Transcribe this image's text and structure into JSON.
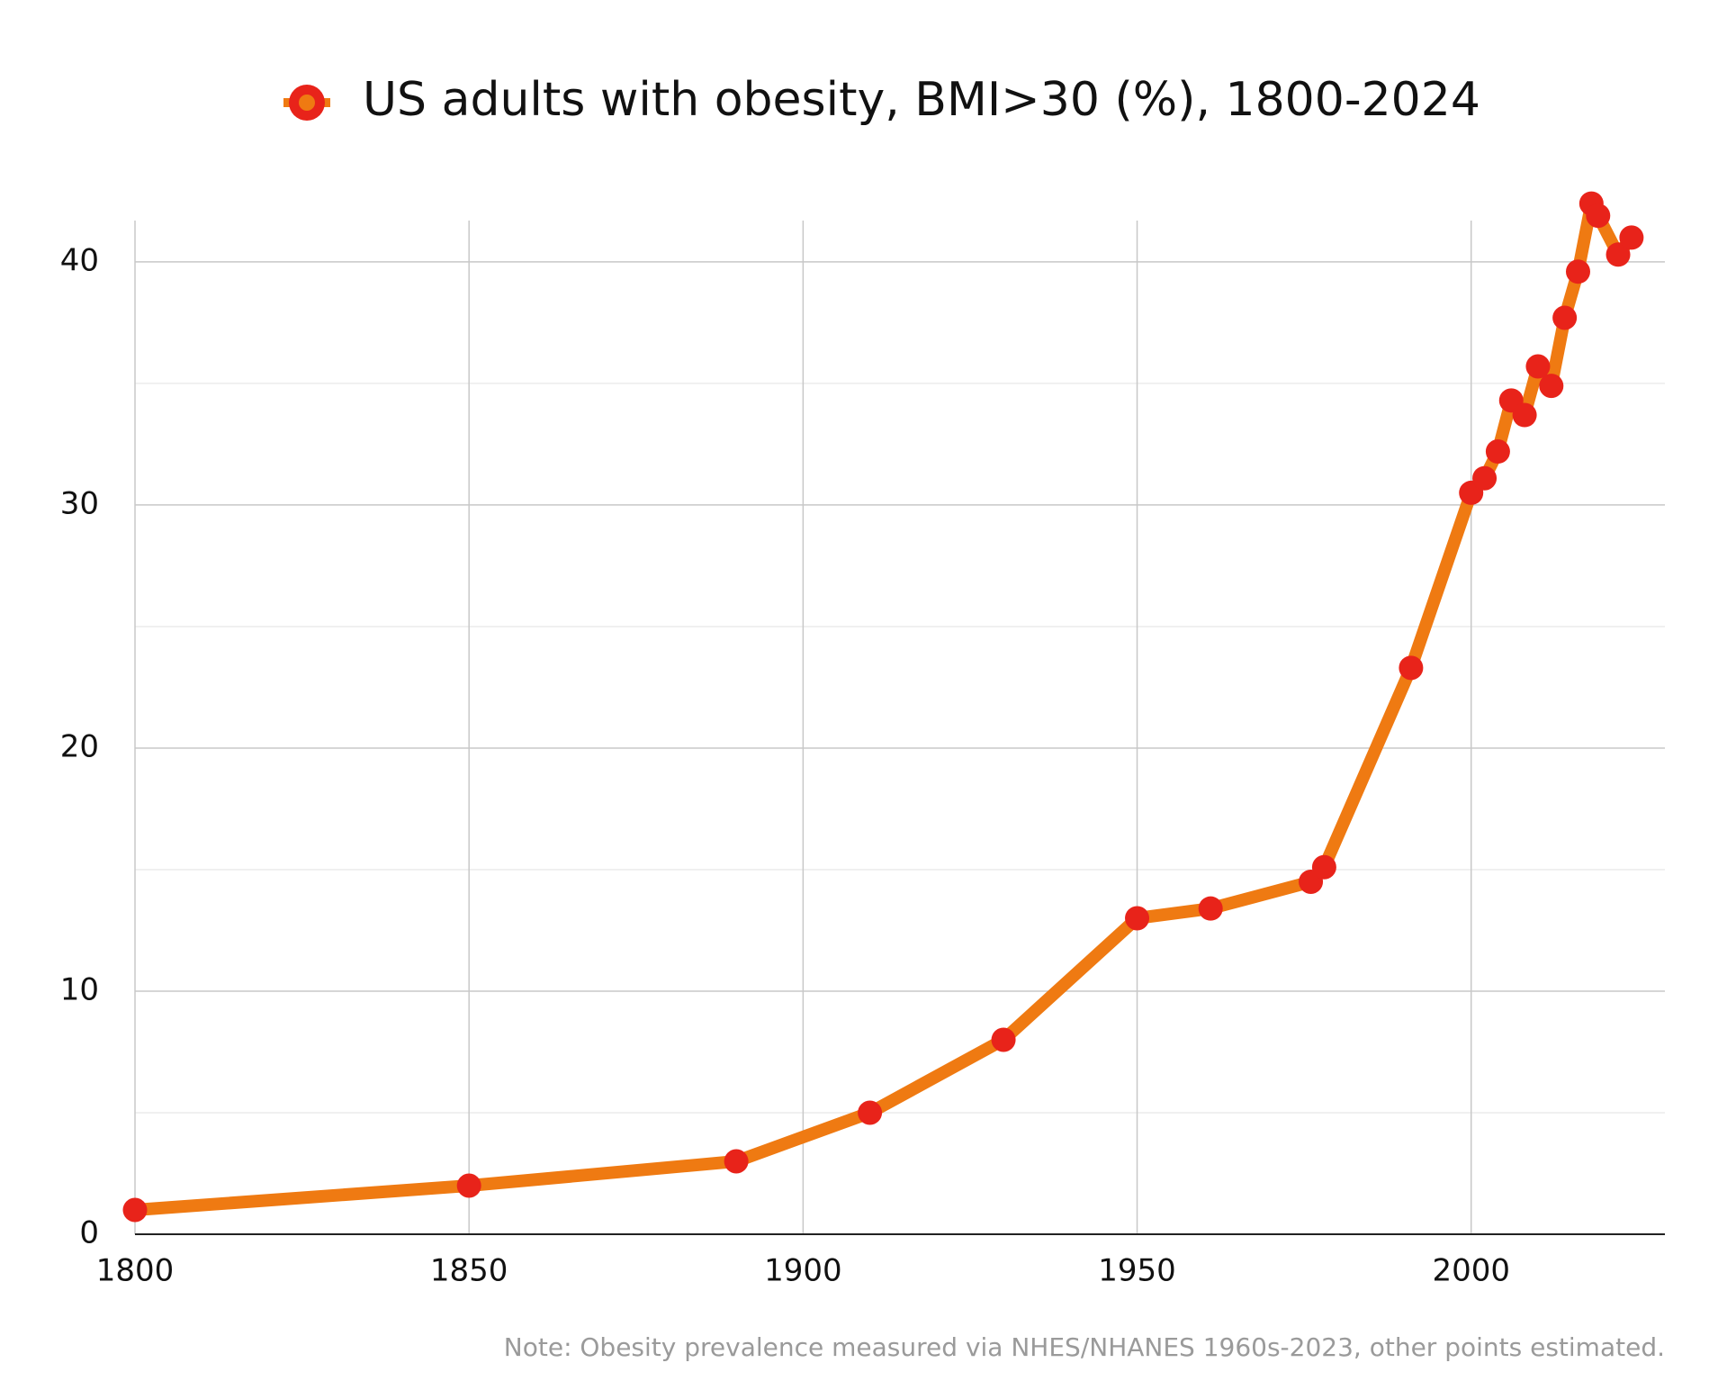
{
  "chart_data": {
    "type": "line",
    "x": [
      1800,
      1850,
      1890,
      1910,
      1930,
      1950,
      1961,
      1976,
      1978,
      1991,
      2000,
      2002,
      2004,
      2006,
      2008,
      2010,
      2012,
      2014,
      2016,
      2018,
      2019,
      2022,
      2024
    ],
    "series": [
      {
        "name": "US adults with obesity, BMI>30 (%), 1800-2024",
        "color": "#ef7a12",
        "marker_color": "#e8231a",
        "values": [
          1.0,
          2.0,
          3.0,
          5.0,
          8.0,
          13.0,
          13.4,
          14.5,
          15.1,
          23.3,
          30.5,
          31.1,
          32.2,
          34.3,
          33.7,
          35.7,
          34.9,
          37.7,
          39.6,
          42.4,
          41.9,
          40.3,
          41.0
        ]
      }
    ],
    "xlim": [
      1800,
      2029
    ],
    "ylim": [
      0,
      41.7
    ],
    "xticks": [
      1800,
      1850,
      1900,
      1950,
      2000
    ],
    "yticks": [
      0,
      10,
      20,
      30,
      40
    ],
    "minor_yticks": [
      5,
      15,
      25,
      35
    ],
    "grid": true,
    "legend": "top",
    "note": "Note: Obesity prevalence measured via NHES/NHANES 1960s-2023, other points estimated."
  }
}
